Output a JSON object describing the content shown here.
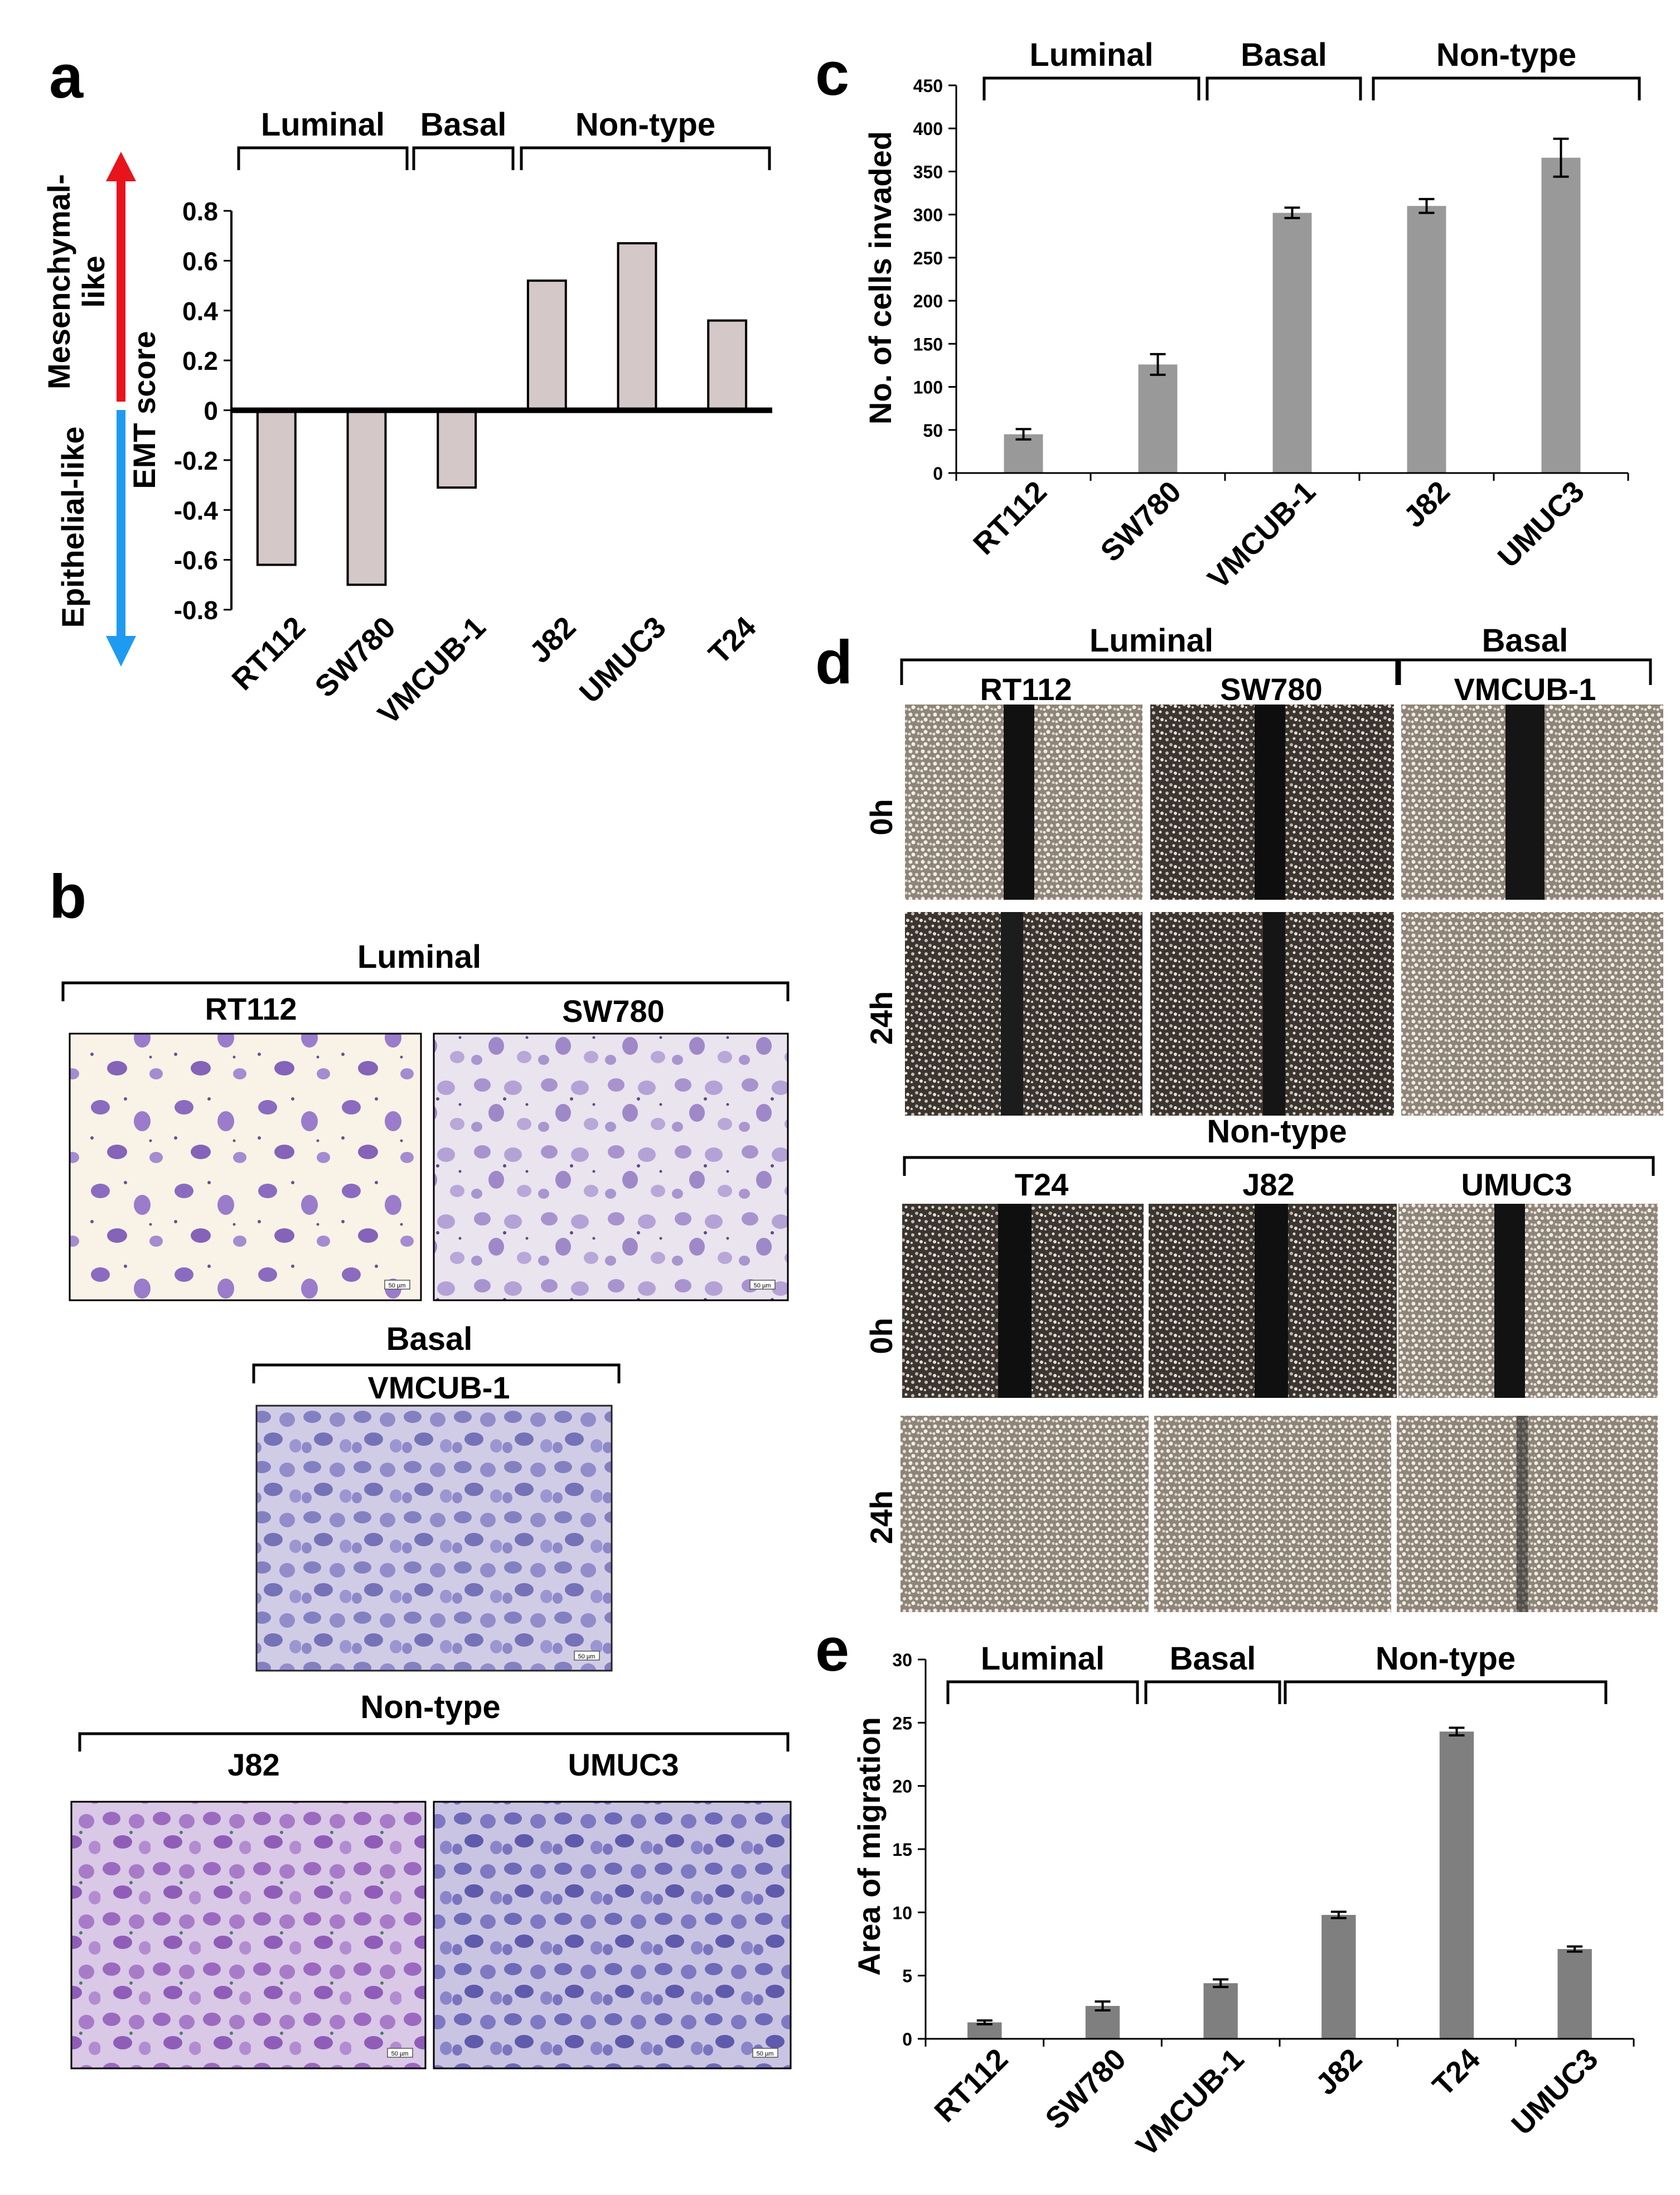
{
  "panels": {
    "a": "a",
    "b": "b",
    "c": "c",
    "d": "d",
    "e": "e"
  },
  "chart_data": [
    {
      "panel": "a",
      "type": "bar",
      "categories": [
        "RT112",
        "SW780",
        "VMCUB-1",
        "J82",
        "UMUC3",
        "T24"
      ],
      "values": [
        -0.62,
        -0.7,
        -0.31,
        0.52,
        0.67,
        0.36
      ],
      "ylabel": "EMT score",
      "ylim": [
        -0.8,
        0.8
      ],
      "yticks": [
        "0.8",
        "0.6",
        "0.4",
        "0.2",
        "0",
        "-0.2",
        "-0.4",
        "-0.6",
        "-0.8"
      ],
      "groups": [
        "Luminal",
        "Basal",
        "Non-type"
      ],
      "arrow_up_label": "Mesenchymal-like",
      "arrow_up_label_lines": [
        "Mesenchymal-",
        "like"
      ],
      "arrow_down_label": "Epithelial-like",
      "arrow_up_color": "#e8141c",
      "arrow_down_color": "#1e9bf0",
      "bar_color": "#d4c8c8"
    },
    {
      "panel": "c",
      "type": "bar",
      "categories": [
        "RT112",
        "SW780",
        "VMCUB-1",
        "J82",
        "UMUC3"
      ],
      "values": [
        45,
        126,
        302,
        310,
        366
      ],
      "errors": [
        6,
        12,
        6,
        8,
        22
      ],
      "ylabel": "No. of cells invaded",
      "ylim": [
        0,
        450
      ],
      "yticks": [
        "0",
        "50",
        "100",
        "150",
        "200",
        "250",
        "300",
        "350",
        "400",
        "450"
      ],
      "groups": [
        "Luminal",
        "Basal",
        "Non-type"
      ],
      "bar_color": "#999999"
    },
    {
      "panel": "e",
      "type": "bar",
      "categories": [
        "RT112",
        "SW780",
        "VMCUB-1",
        "J82",
        "T24",
        "UMUC3"
      ],
      "values": [
        1.3,
        2.6,
        4.4,
        9.8,
        24.3,
        7.1
      ],
      "errors": [
        0.15,
        0.35,
        0.3,
        0.25,
        0.3,
        0.2
      ],
      "ylabel": "Area of migration",
      "ylim": [
        0,
        30
      ],
      "yticks": [
        "0",
        "5",
        "10",
        "15",
        "20",
        "25",
        "30"
      ],
      "groups": [
        "Luminal",
        "Basal",
        "Non-type"
      ],
      "bar_color": "#7f7f7f"
    }
  ],
  "panel_b": {
    "luminal": "Luminal",
    "basal": "Basal",
    "nontype": "Non-type",
    "images": [
      "RT112",
      "SW780",
      "VMCUB-1",
      "J82",
      "UMUC3"
    ],
    "scale_bar": "50 µm",
    "stain_color": "#8a6fc0"
  },
  "panel_d": {
    "top_groups": [
      "Luminal",
      "Basal"
    ],
    "bottom_group": "Non-type",
    "top_lines": [
      "RT112",
      "SW780",
      "VMCUB-1"
    ],
    "bottom_lines": [
      "T24",
      "J82",
      "UMUC3"
    ],
    "times": [
      "0h",
      "24h"
    ]
  }
}
